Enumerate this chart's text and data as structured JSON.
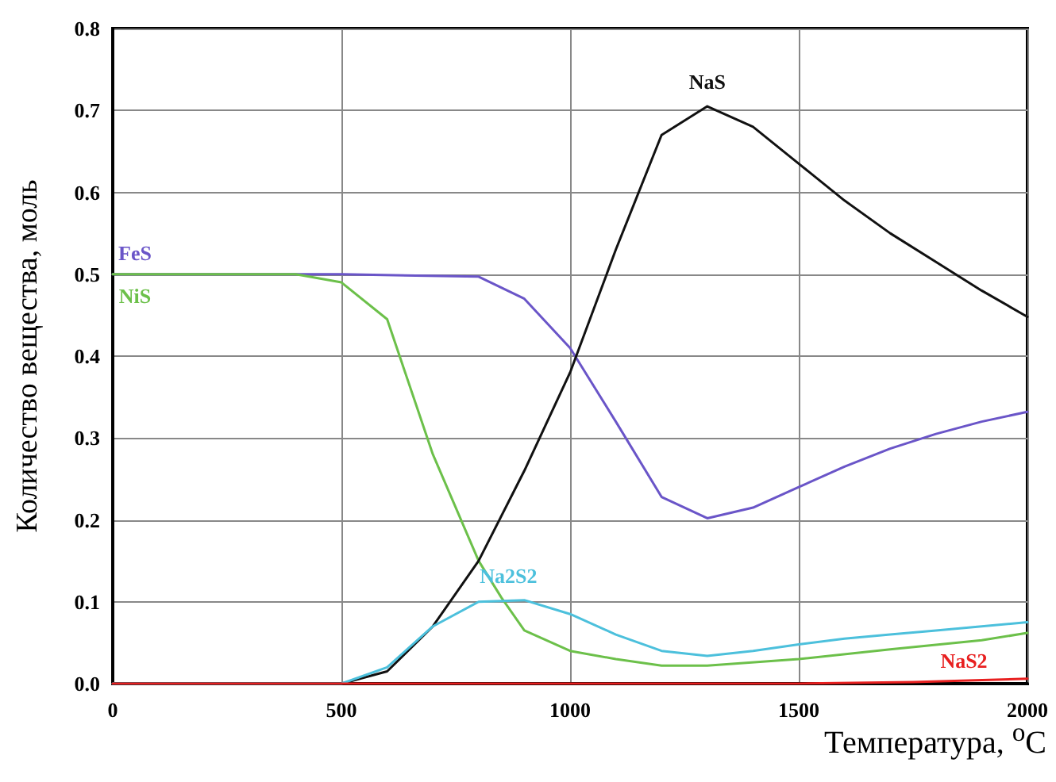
{
  "chart_data": {
    "type": "line",
    "xlabel": "Температура, $^{o}$C",
    "ylabel": "Количество вещества, моль",
    "xlim": [
      0,
      2000
    ],
    "xticks": [
      0,
      500,
      1000,
      1500,
      2000
    ],
    "ylim": [
      0,
      0.8
    ],
    "yticks": [
      {
        "value": 0,
        "label": "0.0"
      },
      0.1,
      0.2,
      0.3,
      0.4,
      0.5,
      0.6,
      0.7,
      0.8
    ],
    "grid": true,
    "legend": false,
    "marker": "none",
    "line_style": "solid",
    "series": [
      {
        "name": "FeS",
        "color": "#6a55c8",
        "x": [
          0,
          500,
          800,
          900,
          1000,
          1100,
          1200,
          1300,
          1400,
          1500,
          1600,
          1700,
          1800,
          1900,
          2000
        ],
        "values": [
          0.5,
          0.5,
          0.497,
          0.47,
          0.41,
          0.32,
          0.228,
          0.202,
          0.215,
          0.24,
          0.265,
          0.287,
          0.305,
          0.32,
          0.332
        ]
      },
      {
        "name": "NiS",
        "color": "#6cc04a",
        "x": [
          0,
          400,
          500,
          600,
          700,
          800,
          850,
          900,
          1000,
          1100,
          1200,
          1300,
          1500,
          1700,
          1900,
          2000
        ],
        "values": [
          0.5,
          0.5,
          0.49,
          0.445,
          0.28,
          0.15,
          0.105,
          0.065,
          0.04,
          0.03,
          0.022,
          0.022,
          0.03,
          0.042,
          0.053,
          0.062
        ]
      },
      {
        "name": "NaS",
        "color": "#111111",
        "x": [
          0,
          500,
          600,
          700,
          800,
          900,
          1000,
          1100,
          1200,
          1300,
          1400,
          1500,
          1600,
          1700,
          1800,
          1900,
          2000
        ],
        "values": [
          0,
          0,
          0.015,
          0.07,
          0.15,
          0.26,
          0.38,
          0.53,
          0.67,
          0.705,
          0.68,
          0.635,
          0.59,
          0.55,
          0.515,
          0.48,
          0.448
        ]
      },
      {
        "name": "Na2S2",
        "color": "#4cc0dc",
        "x": [
          0,
          500,
          600,
          700,
          800,
          900,
          1000,
          1100,
          1200,
          1300,
          1400,
          1500,
          1600,
          1700,
          1800,
          1900,
          2000
        ],
        "values": [
          0,
          0,
          0.02,
          0.07,
          0.1,
          0.102,
          0.085,
          0.06,
          0.04,
          0.034,
          0.04,
          0.048,
          0.055,
          0.06,
          0.065,
          0.07,
          0.075
        ]
      },
      {
        "name": "NaS2",
        "color": "#e82020",
        "x": [
          0,
          1500,
          1750,
          2000
        ],
        "values": [
          0,
          0,
          0.002,
          0.006
        ]
      }
    ]
  }
}
